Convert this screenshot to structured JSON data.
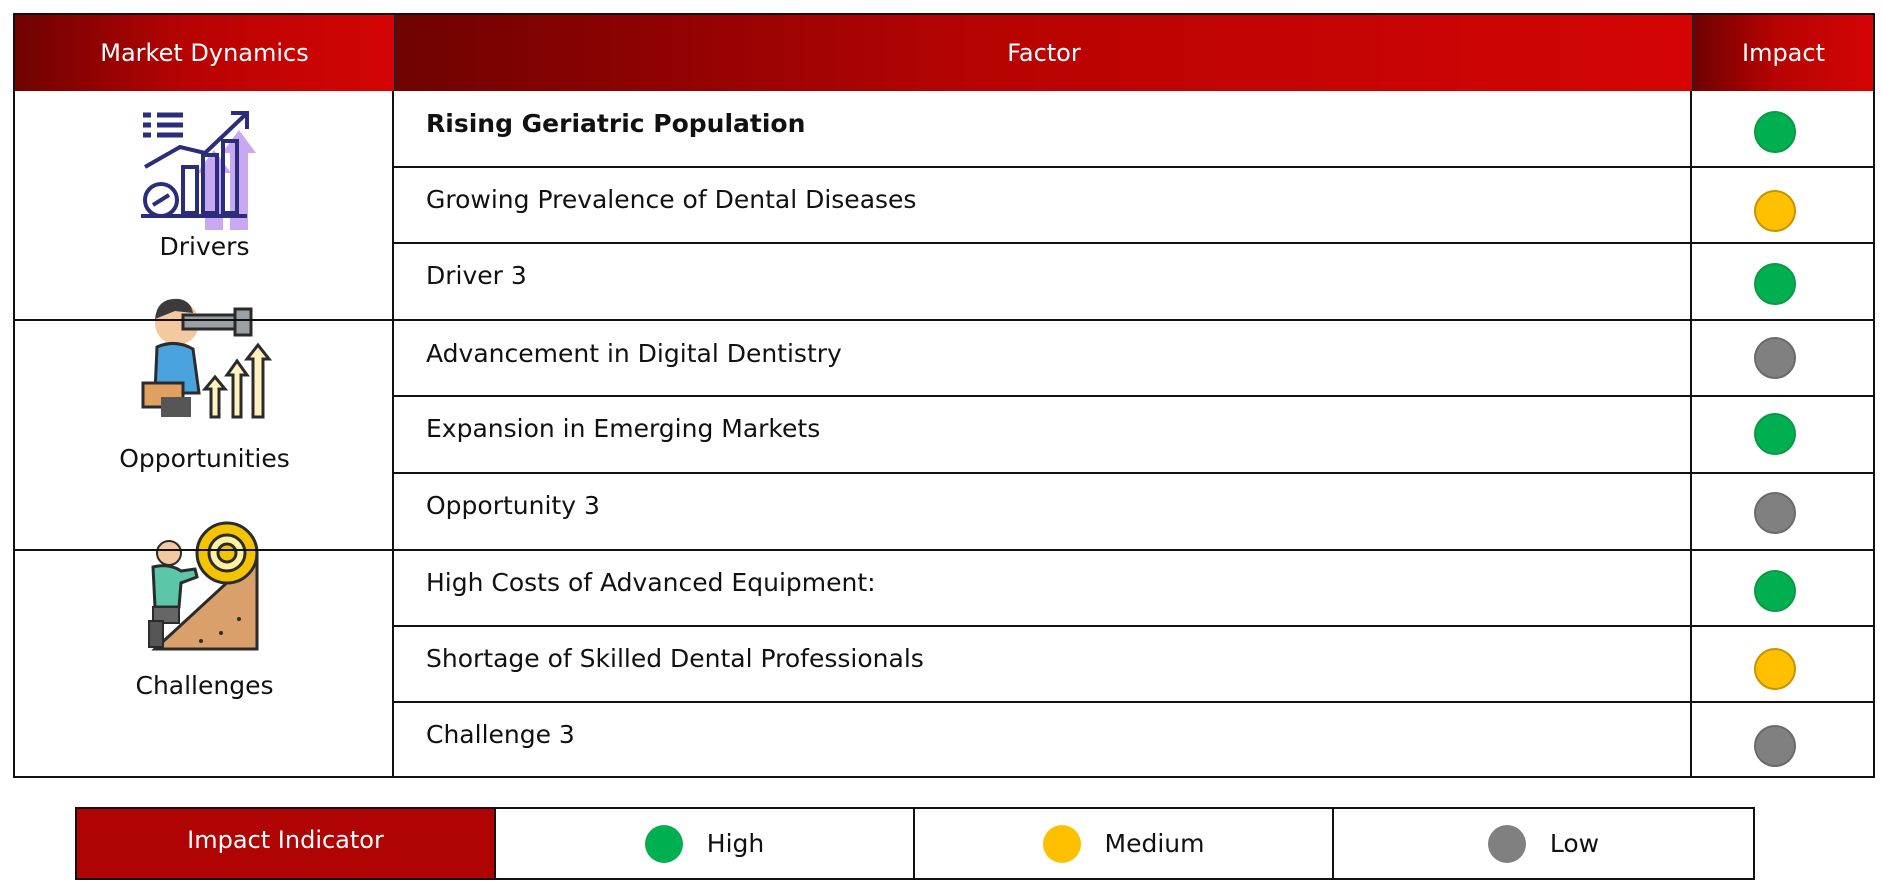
{
  "headers": {
    "market_dynamics": "Market Dynamics",
    "factor": "Factor",
    "impact": "Impact"
  },
  "colors": {
    "high": "#00b050",
    "medium": "#ffc000",
    "low": "#808080",
    "header_red": "#b70303"
  },
  "groups": [
    {
      "label": "Drivers",
      "icon": "growth-chart-icon",
      "factors": [
        {
          "text": "Rising Geriatric Population",
          "impact": "high",
          "bold": true
        },
        {
          "text": "Growing Prevalence of Dental Diseases",
          "impact": "medium",
          "bold": false
        },
        {
          "text": "Driver 3",
          "impact": "high",
          "bold": false
        }
      ]
    },
    {
      "label": "Opportunities",
      "icon": "binoculars-person-icon",
      "factors": [
        {
          "text": "Advancement in Digital Dentistry",
          "impact": "low",
          "bold": false
        },
        {
          "text": "Expansion in Emerging Markets",
          "impact": "high",
          "bold": false
        },
        {
          "text": "Opportunity 3",
          "impact": "low",
          "bold": false
        }
      ]
    },
    {
      "label": "Challenges",
      "icon": "climbing-gear-icon",
      "factors": [
        {
          "text": "High Costs of Advanced Equipment:",
          "impact": "high",
          "bold": false
        },
        {
          "text": "Shortage of Skilled Dental Professionals",
          "impact": "medium",
          "bold": false
        },
        {
          "text": "Challenge 3",
          "impact": "low",
          "bold": false
        }
      ]
    }
  ],
  "legend": {
    "title": "Impact Indicator",
    "items": [
      {
        "label": "High",
        "level": "high"
      },
      {
        "label": "Medium",
        "level": "medium"
      },
      {
        "label": "Low",
        "level": "low"
      }
    ]
  }
}
